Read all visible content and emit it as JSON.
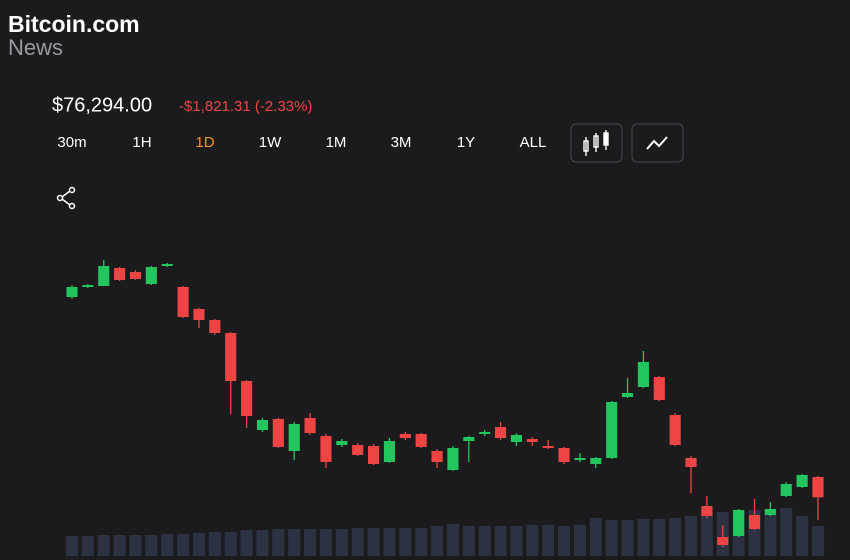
{
  "header": {
    "brand": "Bitcoin.com",
    "brand_sub": "News"
  },
  "price": {
    "value": "$76,294.00",
    "change": "-$1,821.31 (-2.33%)"
  },
  "timeframes": [
    "30m",
    "1H",
    "1D",
    "1W",
    "1M",
    "3M",
    "1Y",
    "ALL"
  ],
  "active_timeframe": 2,
  "chart_data": {
    "type": "candlestick",
    "up_color": "#22c55e",
    "down_color": "#ef4444",
    "volume_color": "#2c3242",
    "open": [
      78097,
      78187,
      78196,
      78358,
      78322,
      78214,
      78376,
      78187,
      77989,
      77890,
      77773,
      77341,
      76900,
      76999,
      76711,
      77008,
      76846,
      76765,
      76765,
      76756,
      76612,
      76864,
      76864,
      76711,
      76540,
      76801,
      76864,
      76927,
      76792,
      76819,
      76756,
      76738,
      76630,
      76594,
      76648,
      77197,
      77287,
      77377,
      77035,
      76648,
      76216,
      75937,
      75946,
      76135,
      76135,
      76306,
      76387,
      76477
    ],
    "high": [
      78205,
      78214,
      78430,
      78367,
      78340,
      78376,
      78403,
      78196,
      77998,
      77899,
      77782,
      77350,
      77008,
      77008,
      76972,
      77053,
      76864,
      76819,
      76783,
      76774,
      76828,
      76882,
      76873,
      76729,
      76756,
      76846,
      76900,
      76972,
      76873,
      76837,
      76810,
      76747,
      76693,
      76657,
      77161,
      77368,
      77611,
      77386,
      77053,
      76666,
      76306,
      76045,
      76189,
      76279,
      76252,
      76432,
      76504,
      76486
    ],
    "low": [
      78079,
      78178,
      78196,
      78241,
      78250,
      78205,
      78367,
      77908,
      77818,
      77755,
      77044,
      76918,
      76882,
      76738,
      76630,
      76855,
      76558,
      76747,
      76666,
      76585,
      76603,
      76810,
      76738,
      76558,
      76531,
      76612,
      76846,
      76810,
      76756,
      76756,
      76729,
      76594,
      76612,
      76558,
      76639,
      77188,
      77278,
      77161,
      76756,
      76333,
      76108,
      75847,
      75937,
      76000,
      76126,
      76297,
      76378,
      76090
    ],
    "close": [
      78187,
      78205,
      78376,
      78250,
      78259,
      78367,
      78394,
      77917,
      77890,
      77773,
      77341,
      77026,
      76990,
      76747,
      76954,
      76873,
      76612,
      76801,
      76675,
      76594,
      76801,
      76828,
      76747,
      76612,
      76738,
      76837,
      76882,
      76828,
      76855,
      76792,
      76738,
      76612,
      76648,
      76648,
      77152,
      77233,
      77512,
      77170,
      76765,
      76567,
      76126,
      75865,
      76180,
      76009,
      76189,
      76414,
      76495,
      76294
    ],
    "volume": [
      20,
      20,
      21,
      21,
      21,
      21,
      22,
      22,
      23,
      24,
      24,
      26,
      26,
      27,
      27,
      27,
      27,
      27,
      28,
      28,
      28,
      28,
      28,
      30,
      32,
      30,
      30,
      30,
      30,
      31,
      31,
      30,
      31,
      38,
      36,
      36,
      37,
      37,
      38,
      40,
      42,
      44,
      46,
      46,
      46,
      48,
      40,
      30
    ]
  }
}
